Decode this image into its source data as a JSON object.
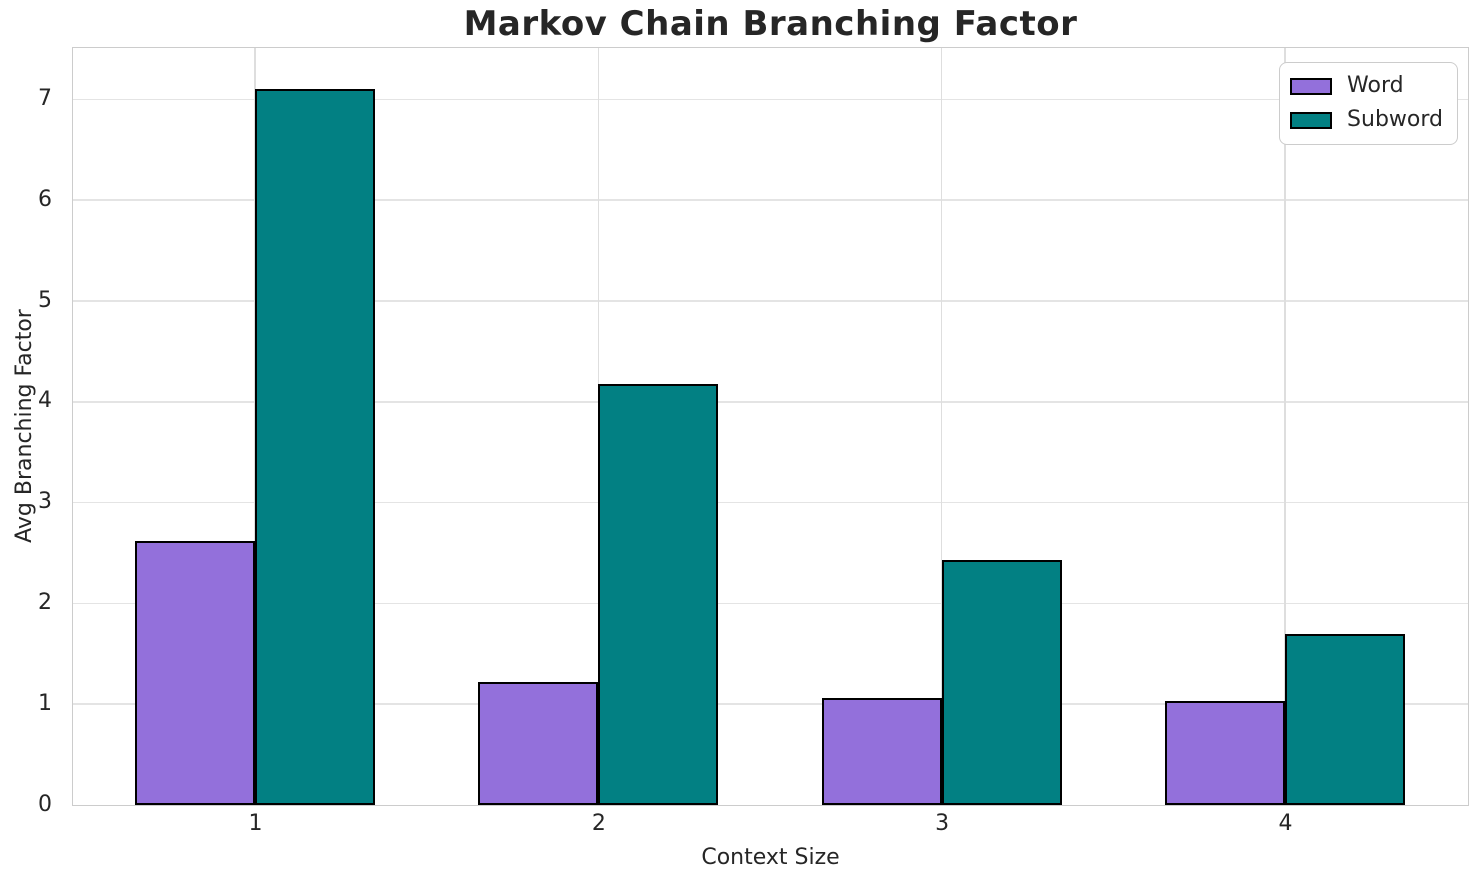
{
  "chart_data": {
    "type": "bar",
    "title": "Markov Chain Branching Factor",
    "xlabel": "Context Size",
    "ylabel": "Avg Branching Factor",
    "categories": [
      "1",
      "2",
      "3",
      "4"
    ],
    "series": [
      {
        "name": "Word",
        "color": "#9370db",
        "values": [
          2.62,
          1.22,
          1.06,
          1.03
        ]
      },
      {
        "name": "Subword",
        "color": "#028083",
        "values": [
          7.1,
          4.18,
          2.43,
          1.7
        ]
      }
    ],
    "ylim": [
      0,
      7.5
    ],
    "yticks": [
      0,
      1,
      2,
      3,
      4,
      5,
      6,
      7
    ],
    "xlim": [
      0.47,
      4.53
    ],
    "bar_width_fraction": 0.35,
    "grid": true,
    "legend_position": "upper right",
    "colors": {
      "bar_edge": "#000000",
      "grid_h": "#e4e4e4",
      "grid_v": "#dedede",
      "spine": "#cccccc",
      "text": "#262626",
      "background": "#ffffff"
    }
  }
}
